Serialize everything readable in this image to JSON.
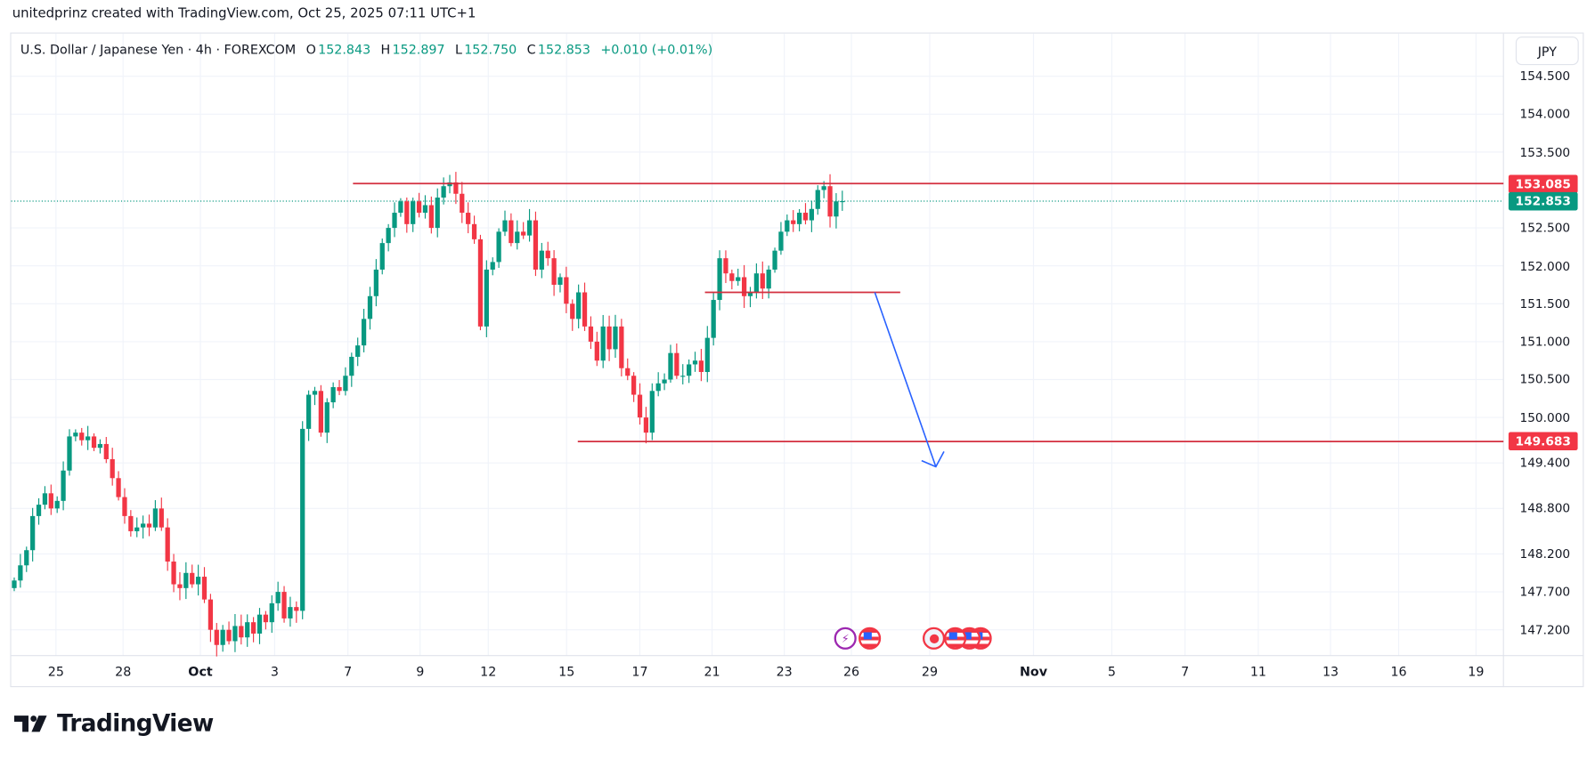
{
  "caption": "unitedprinz created with TradingView.com, Oct 25, 2025 07:11 UTC+1",
  "legend": {
    "symbol": "U.S. Dollar / Japanese Yen · 4h · FOREXCOM",
    "o_label": "O",
    "o": "152.843",
    "h_label": "H",
    "h": "152.897",
    "l_label": "L",
    "l": "152.750",
    "c_label": "C",
    "c": "152.853",
    "change": "+0.010 (+0.01%)"
  },
  "currency_button": "JPY",
  "logo_text": "TradingView",
  "colors": {
    "up": "#089981",
    "down": "#f23645",
    "line": "#d32f3f",
    "arrow": "#2962ff",
    "grid": "#f0f3fa"
  },
  "chart_data": {
    "type": "candlestick",
    "title": "U.S. Dollar / Japanese Yen · 4h · FOREXCOM",
    "ylim": [
      146.9,
      154.6
    ],
    "y_ticks": [
      "154.500",
      "154.000",
      "153.500",
      "152.500",
      "152.000",
      "151.500",
      "151.000",
      "150.500",
      "150.000",
      "149.400",
      "148.800",
      "148.200",
      "147.700",
      "147.200"
    ],
    "x_ticks": [
      "25",
      "28",
      "Oct",
      "3",
      "7",
      "9",
      "12",
      "15",
      "17",
      "21",
      "23",
      "26",
      "29",
      "Nov",
      "5",
      "7",
      "11",
      "13",
      "16",
      "19"
    ],
    "first_open": 147.75,
    "close": [
      147.85,
      148.05,
      148.25,
      148.7,
      148.85,
      149.0,
      148.8,
      148.9,
      149.3,
      149.75,
      149.8,
      149.7,
      149.75,
      149.6,
      149.65,
      149.45,
      149.2,
      148.95,
      148.7,
      148.5,
      148.55,
      148.6,
      148.55,
      148.8,
      148.55,
      148.1,
      147.8,
      147.75,
      147.95,
      147.8,
      147.9,
      147.6,
      147.2,
      147.0,
      147.2,
      147.05,
      147.25,
      147.1,
      147.3,
      147.15,
      147.4,
      147.3,
      147.55,
      147.7,
      147.35,
      147.5,
      147.45,
      149.85,
      150.3,
      150.35,
      149.8,
      150.2,
      150.4,
      150.35,
      150.55,
      150.8,
      150.95,
      151.3,
      151.6,
      151.95,
      152.3,
      152.5,
      152.7,
      152.85,
      152.55,
      152.85,
      152.7,
      152.8,
      152.5,
      152.9,
      153.05,
      153.1,
      152.95,
      152.7,
      152.55,
      152.35,
      151.2,
      151.95,
      152.05,
      152.45,
      152.6,
      152.3,
      152.45,
      152.4,
      152.6,
      151.95,
      152.2,
      152.1,
      151.75,
      151.85,
      151.5,
      151.3,
      151.65,
      151.2,
      151.0,
      150.75,
      151.2,
      150.9,
      151.2,
      150.65,
      150.55,
      150.3,
      150.0,
      149.8,
      150.35,
      150.45,
      150.5,
      150.85,
      150.55,
      150.55,
      150.7,
      150.75,
      150.6,
      151.05,
      151.55,
      152.1,
      151.9,
      151.8,
      151.85,
      151.6,
      151.65,
      151.9,
      151.7,
      151.95,
      152.2,
      152.45,
      152.6,
      152.55,
      152.7,
      152.6,
      152.75,
      153.0,
      153.05,
      152.65,
      152.85,
      152.853
    ],
    "current_price": "152.853",
    "horizontal_levels": [
      {
        "price": 153.085,
        "label": "153.085"
      },
      {
        "price": 151.65,
        "label": ""
      },
      {
        "price": 149.683,
        "label": "149.683"
      }
    ],
    "arrow": {
      "from_price": 151.65,
      "to_price": 149.35,
      "direction": "down"
    },
    "events": [
      "earnings",
      "us-flag",
      "record",
      "us-flag",
      "us-flag",
      "us-flag"
    ]
  }
}
